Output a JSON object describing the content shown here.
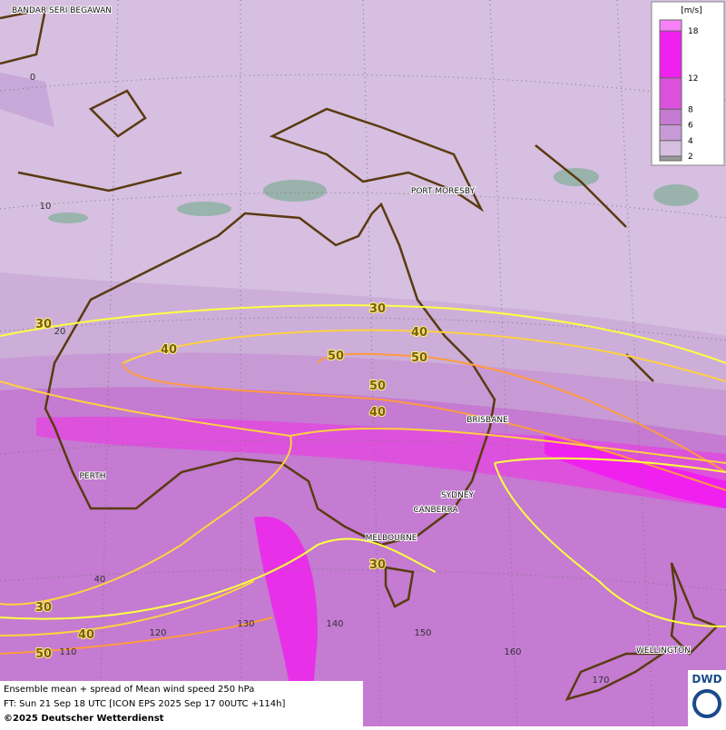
{
  "map": {
    "cities": [
      "BANDAR SERI BEGAWAN",
      "PORT MORESBY",
      "BRISBANE",
      "PERTH",
      "SYDNEY",
      "CANBERRA",
      "MELBOURNE",
      "WELLINGTON"
    ],
    "grid_labels": [
      "0",
      "10",
      "20",
      "40",
      "110",
      "120",
      "130",
      "140",
      "150",
      "160",
      "170"
    ],
    "contour_labels": [
      "30",
      "30",
      "40",
      "40",
      "50",
      "50",
      "50",
      "40",
      "30",
      "30",
      "40",
      "50"
    ]
  },
  "legend": {
    "unit": "[m/s]",
    "levels": [
      2,
      4,
      6,
      8,
      12,
      18
    ]
  },
  "footer": {
    "line1": "Ensemble mean + spread of Mean wind speed 250 hPa",
    "line2": "FT: Sun 21 Sep 18 UTC [ICON EPS 2025 Sep 17 00UTC +114h]",
    "line3": "©2025 Deutscher Wetterdienst"
  },
  "logo": "DWD"
}
